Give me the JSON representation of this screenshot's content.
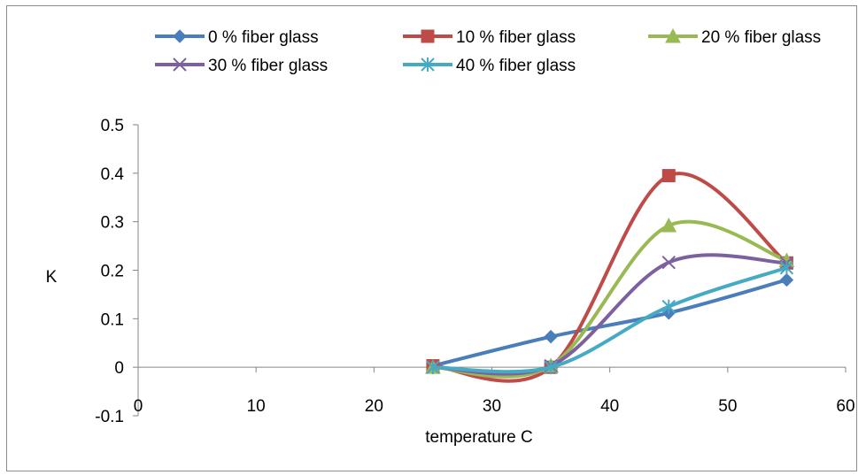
{
  "chart_data": {
    "type": "line",
    "smooth": true,
    "title": "",
    "xlabel": "temperature C",
    "ylabel": "K",
    "xlim": [
      0,
      60
    ],
    "ylim": [
      -0.1,
      0.5
    ],
    "x_ticks": [
      "0",
      "10",
      "20",
      "30",
      "40",
      "50",
      "60"
    ],
    "y_ticks": [
      "-0.1",
      "0",
      "0.1",
      "0.2",
      "0.3",
      "0.4",
      "0.5"
    ],
    "grid": false,
    "legend_position": "top",
    "x": [
      25,
      35,
      45,
      55
    ],
    "series": [
      {
        "name": "0 % fiber glass",
        "values": [
          0.003,
          0.063,
          0.112,
          0.18
        ],
        "color": "#4a7ebb",
        "marker": "diamond"
      },
      {
        "name": "10 % fiber glass",
        "values": [
          0.003,
          0.0,
          0.395,
          0.215
        ],
        "color": "#be4b48",
        "marker": "square"
      },
      {
        "name": "20 % fiber glass",
        "values": [
          0.0,
          0.003,
          0.292,
          0.22
        ],
        "color": "#98b954",
        "marker": "triangle"
      },
      {
        "name": "30 % fiber glass",
        "values": [
          0.0,
          0.003,
          0.216,
          0.215
        ],
        "color": "#7d60a0",
        "marker": "x"
      },
      {
        "name": "40 % fiber glass",
        "values": [
          0.0,
          0.0,
          0.125,
          0.205
        ],
        "color": "#46aac5",
        "marker": "star"
      }
    ]
  }
}
